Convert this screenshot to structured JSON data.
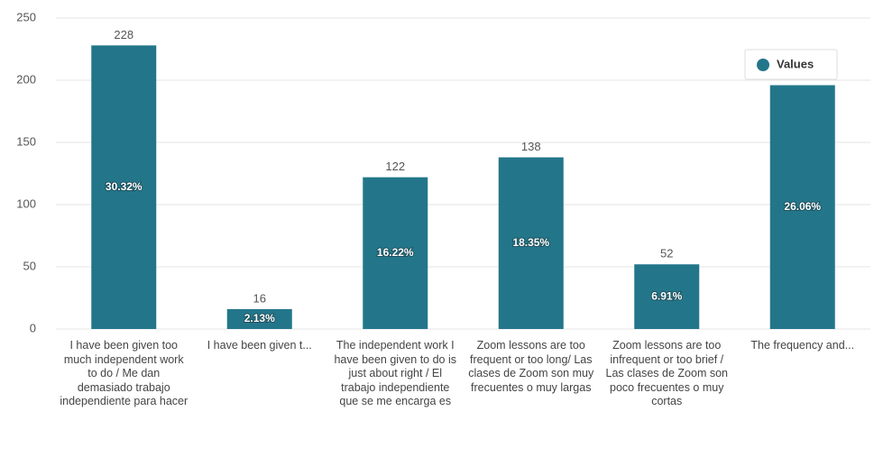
{
  "chart_data": {
    "type": "bar",
    "categories": [
      "I have been given too much independent work to do / Me dan demasiado trabajo independiente para hacer",
      "I have been given t...",
      "The independent work I have been given to do is just about right / El trabajo independiente que se me encarga es",
      "Zoom lessons are too frequent or too long/ Las clases de Zoom son muy frecuentes o muy largas",
      "Zoom lessons are too infrequent or too brief / Las clases de Zoom son poco frecuentes o muy cortas",
      "The frequency and..."
    ],
    "series": [
      {
        "name": "Values",
        "color": "#23768a",
        "values": [
          228,
          16,
          122,
          138,
          52,
          196
        ],
        "value_labels": [
          "228",
          "16",
          "122",
          "138",
          "52",
          null
        ],
        "percent_labels": [
          "30.32%",
          "2.13%",
          "16.22%",
          "18.35%",
          "6.91%",
          "26.06%"
        ]
      }
    ],
    "ylim": [
      0,
      250
    ],
    "yticks": [
      0,
      50,
      100,
      150,
      200,
      250
    ],
    "grid": true,
    "legend": "upper right"
  }
}
